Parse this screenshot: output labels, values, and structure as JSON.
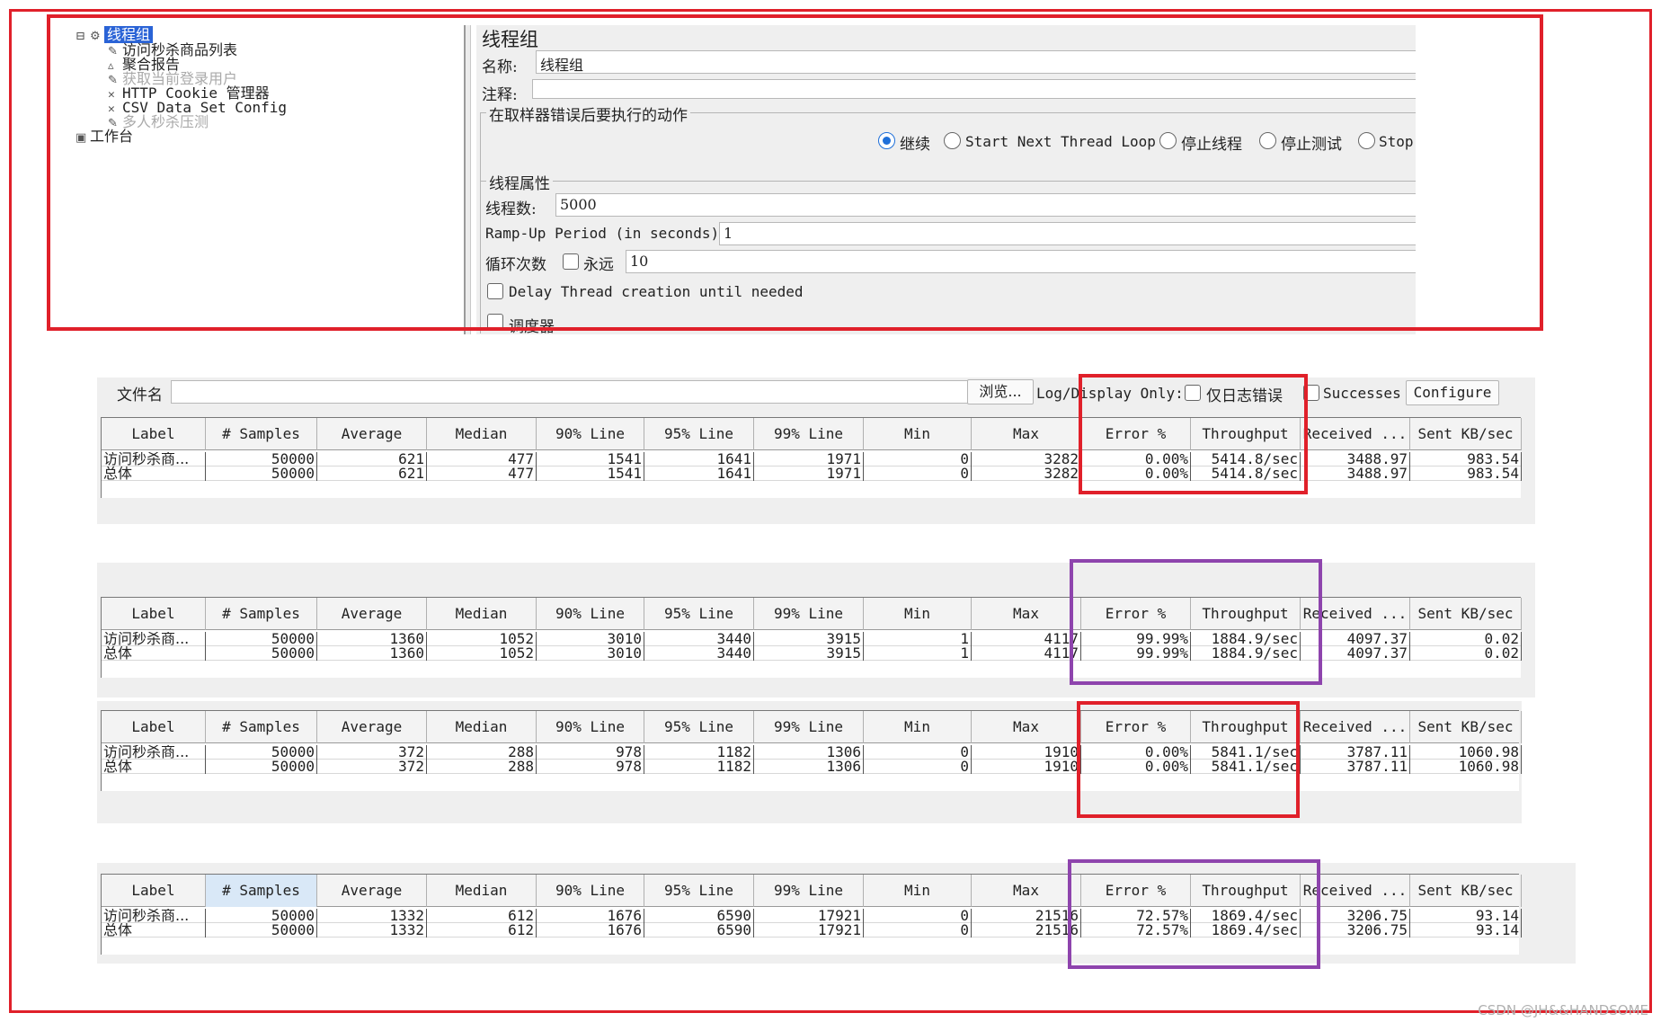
{
  "tree": {
    "root": "线程组",
    "items": [
      "访问秒杀商品列表",
      "聚合报告",
      "获取当前登录用户",
      "HTTP Cookie 管理器",
      "CSV Data Set Config",
      "多人秒杀压测"
    ],
    "workbench": "工作台"
  },
  "thread_group": {
    "title": "线程组",
    "name_label": "名称:",
    "name_value": "线程组",
    "comment_label": "注释:",
    "comment_value": "",
    "error_action_title": "在取样器错误后要执行的动作",
    "error_actions": [
      "继续",
      "Start Next Thread Loop",
      "停止线程",
      "停止测试",
      "Stop"
    ],
    "selected_action": "继续",
    "props_title": "线程属性",
    "threads_label": "线程数:",
    "threads_value": "5000",
    "rampup_label": "Ramp-Up Period (in seconds):",
    "rampup_value": "1",
    "loop_label": "循环次数",
    "forever_label": "永远",
    "loop_value": "10",
    "delay_label": "Delay Thread creation until needed",
    "scheduler_label": "调度器"
  },
  "report_toolbar": {
    "file_label": "文件名",
    "browse_label": "浏览...",
    "log_only_label": "Log/Display Only:",
    "errors_label": "仅日志错误",
    "successes_label": "Successes",
    "configure_label": "Configure"
  },
  "columns": [
    "Label",
    "# Samples",
    "Average",
    "Median",
    "90% Line",
    "95% Line",
    "99% Line",
    "Min",
    "Max",
    "Error %",
    "Throughput",
    "Received ...",
    "Sent KB/sec"
  ],
  "tables": [
    {
      "rows": [
        [
          "访问秒杀商...",
          "50000",
          "621",
          "477",
          "1541",
          "1641",
          "1971",
          "0",
          "3282",
          "0.00%",
          "5414.8/sec",
          "3488.97",
          "983.54"
        ],
        [
          "总体",
          "50000",
          "621",
          "477",
          "1541",
          "1641",
          "1971",
          "0",
          "3282",
          "0.00%",
          "5414.8/sec",
          "3488.97",
          "983.54"
        ]
      ]
    },
    {
      "rows": [
        [
          "访问秒杀商...",
          "50000",
          "1360",
          "1052",
          "3010",
          "3440",
          "3915",
          "1",
          "4117",
          "99.99%",
          "1884.9/sec",
          "4097.37",
          "0.02"
        ],
        [
          "总体",
          "50000",
          "1360",
          "1052",
          "3010",
          "3440",
          "3915",
          "1",
          "4117",
          "99.99%",
          "1884.9/sec",
          "4097.37",
          "0.02"
        ]
      ]
    },
    {
      "rows": [
        [
          "访问秒杀商...",
          "50000",
          "372",
          "288",
          "978",
          "1182",
          "1306",
          "0",
          "1910",
          "0.00%",
          "5841.1/sec",
          "3787.11",
          "1060.98"
        ],
        [
          "总体",
          "50000",
          "372",
          "288",
          "978",
          "1182",
          "1306",
          "0",
          "1910",
          "0.00%",
          "5841.1/sec",
          "3787.11",
          "1060.98"
        ]
      ]
    },
    {
      "rows": [
        [
          "访问秒杀商...",
          "50000",
          "1332",
          "612",
          "1676",
          "6590",
          "17921",
          "0",
          "21516",
          "72.57%",
          "1869.4/sec",
          "3206.75",
          "93.14"
        ],
        [
          "总体",
          "50000",
          "1332",
          "612",
          "1676",
          "6590",
          "17921",
          "0",
          "21516",
          "72.57%",
          "1869.4/sec",
          "3206.75",
          "93.14"
        ]
      ]
    }
  ],
  "watermark": "CSDN @JH&&HANDSOME",
  "colors": {
    "red": "#e0202a",
    "purple": "#8e44ad",
    "selection": "#2a63d6",
    "radio": "#1e6fd9"
  }
}
